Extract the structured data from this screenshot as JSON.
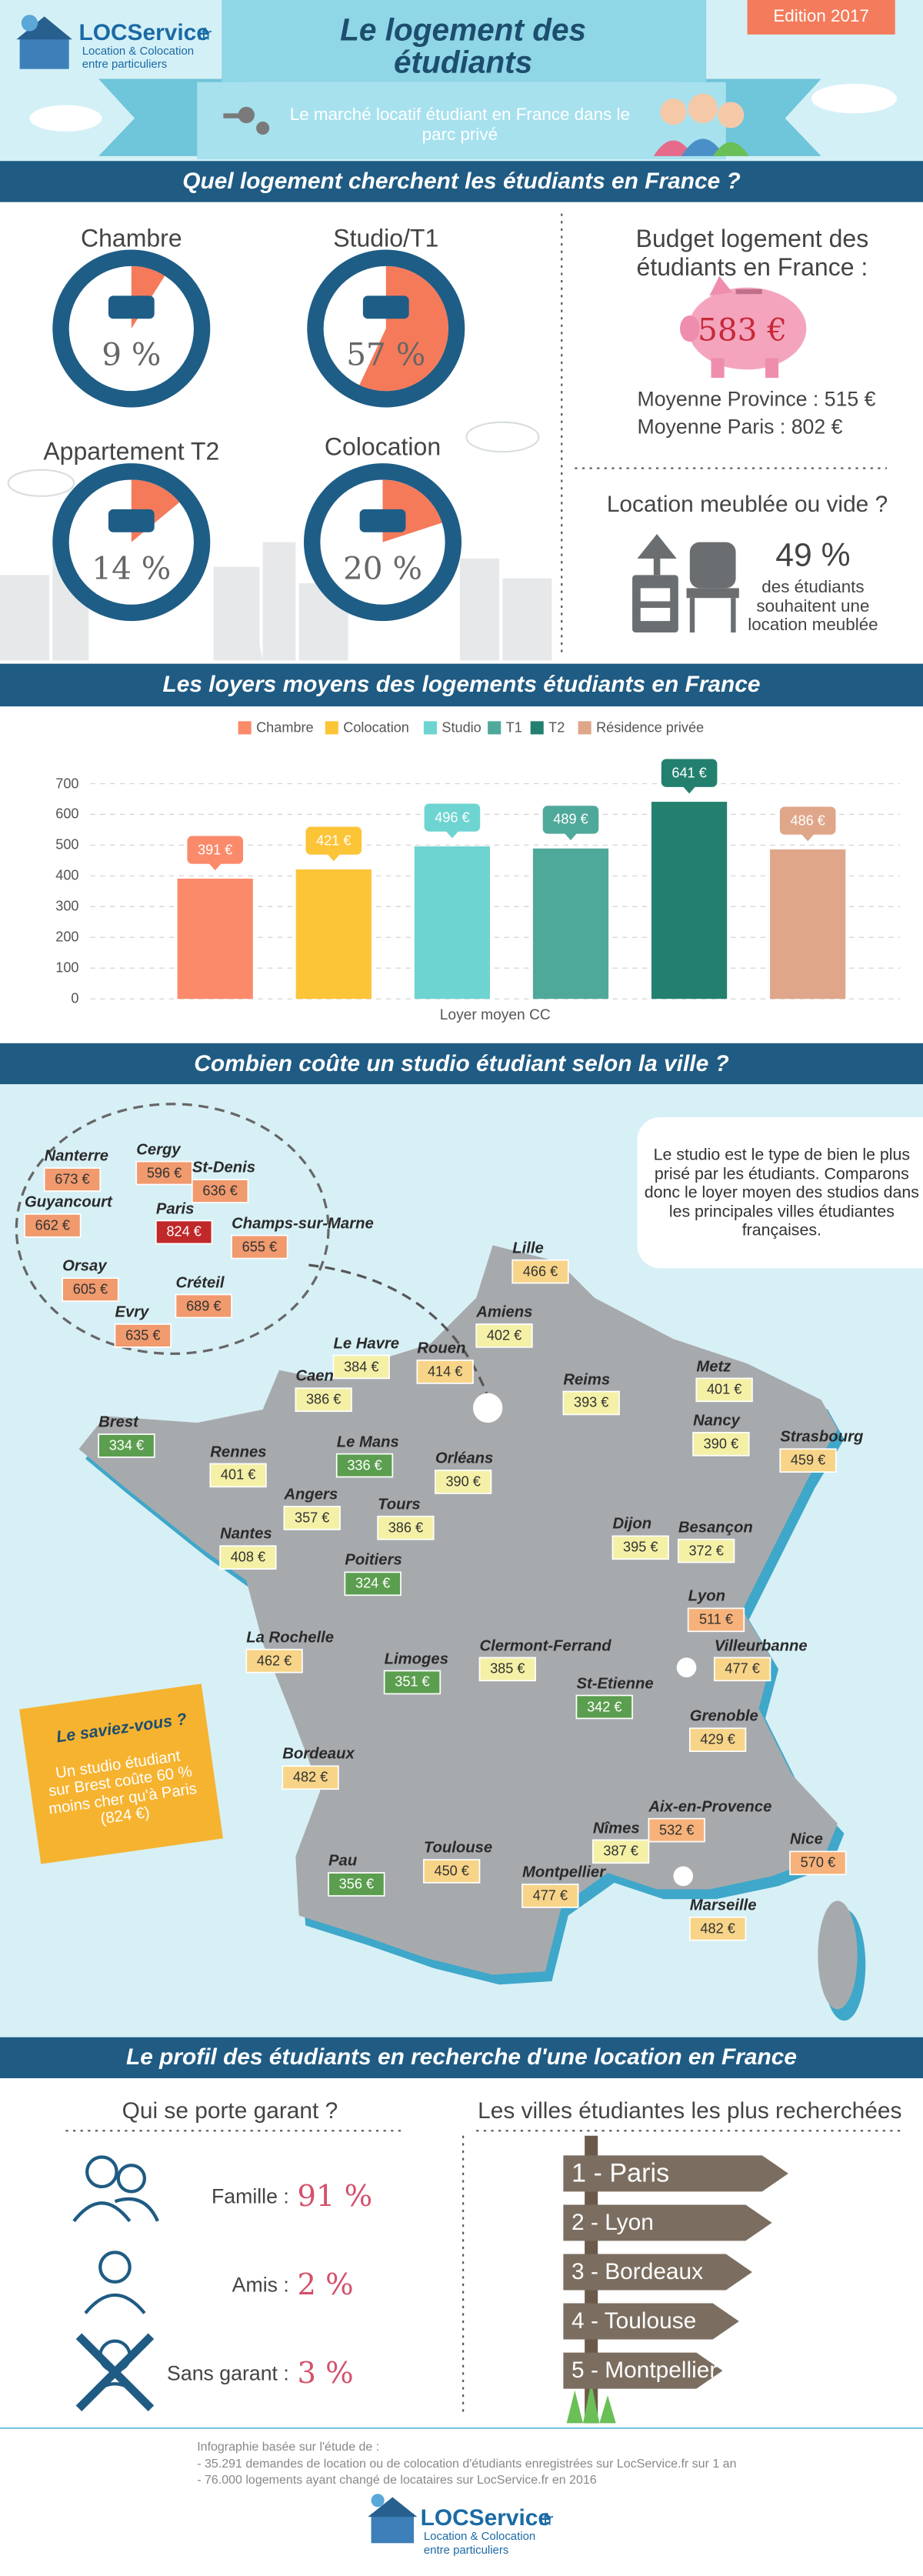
{
  "header": {
    "brand": "LOCService",
    "brand_suffix": ".fr",
    "tagline": "Location & Colocation entre particuliers",
    "title": "Le logement des étudiants",
    "edition": "Edition 2017",
    "subtitle": "Le marché locatif étudiant en France dans le parc privé"
  },
  "housing": {
    "title": "Quel logement cherchent les étudiants en France ?",
    "types": [
      {
        "name": "Chambre",
        "percent": 9,
        "label": "9 %"
      },
      {
        "name": "Studio/T1",
        "percent": 57,
        "label": "57 %"
      },
      {
        "name": "Appartement T2",
        "percent": 14,
        "label": "14 %"
      },
      {
        "name": "Colocation",
        "percent": 20,
        "label": "20 %"
      }
    ],
    "budget": {
      "title": "Budget logement des étudiants en France :",
      "amount": "583 €",
      "province": "Moyenne Province : 515 €",
      "paris": "Moyenne Paris : 802 €"
    },
    "furnished": {
      "title": "Location meublée ou vide ?",
      "percent": "49 %",
      "text": "des étudiants souhaitent une location meublée"
    }
  },
  "chart_data": {
    "type": "bar",
    "title": "Les loyers moyens des logements étudiants en France",
    "categories": [
      "Loyer moyen CC"
    ],
    "series": [
      {
        "name": "Chambre",
        "color": "#fb8a6b",
        "values": [
          391
        ],
        "value_labels": [
          "391 €"
        ]
      },
      {
        "name": "Colocation",
        "color": "#fcc437",
        "values": [
          421
        ],
        "value_labels": [
          "421 €"
        ]
      },
      {
        "name": "Studio",
        "color": "#6dd4d1",
        "values": [
          496
        ],
        "value_labels": [
          "496 €"
        ]
      },
      {
        "name": "T1",
        "color": "#4fa99a",
        "values": [
          489
        ],
        "value_labels": [
          "489 €"
        ]
      },
      {
        "name": "T2",
        "color": "#23806f",
        "values": [
          641
        ],
        "value_labels": [
          "641 €"
        ]
      },
      {
        "name": "Résidence privée",
        "color": "#dfa68a",
        "values": [
          486
        ],
        "value_labels": [
          "486 €"
        ]
      }
    ],
    "ylim": [
      0,
      700
    ],
    "yticks": [
      0,
      100,
      200,
      300,
      400,
      500,
      600,
      700
    ],
    "grid": true,
    "legend": "top"
  },
  "map": {
    "title": "Combien coûte un studio étudiant selon la ville ?",
    "intro": "Le studio est le type de bien le plus prisé par les étudiants. Comparons donc le loyer moyen des studios dans les principales villes étudiantes françaises.",
    "did_you_know": {
      "title": "Le saviez-vous ?",
      "text": "Un studio étudiant sur Brest coûte 60 % moins cher qu'à Paris (824 €)"
    },
    "cities": [
      {
        "name": "Lille",
        "price": "466 €",
        "color": "#f7d488"
      },
      {
        "name": "Amiens",
        "price": "402 €",
        "color": "#f4f0a6"
      },
      {
        "name": "Le Havre",
        "price": "384 €",
        "color": "#f4f0a6"
      },
      {
        "name": "Rouen",
        "price": "414 €",
        "color": "#f7d488"
      },
      {
        "name": "Caen",
        "price": "386 €",
        "color": "#f4f0a6"
      },
      {
        "name": "Reims",
        "price": "393 €",
        "color": "#f4f0a6"
      },
      {
        "name": "Metz",
        "price": "401 €",
        "color": "#f4f0a6"
      },
      {
        "name": "Nancy",
        "price": "390 €",
        "color": "#f4f0a6"
      },
      {
        "name": "Strasbourg",
        "price": "459 €",
        "color": "#f7d488"
      },
      {
        "name": "Brest",
        "price": "334 €",
        "color": "#5c9e4f"
      },
      {
        "name": "Rennes",
        "price": "401 €",
        "color": "#f4f0a6"
      },
      {
        "name": "Le Mans",
        "price": "336 €",
        "color": "#5c9e4f"
      },
      {
        "name": "Orléans",
        "price": "390 €",
        "color": "#f4f0a6"
      },
      {
        "name": "Angers",
        "price": "357 €",
        "color": "#f4f0a6"
      },
      {
        "name": "Tours",
        "price": "386 €",
        "color": "#f4f0a6"
      },
      {
        "name": "Nantes",
        "price": "408 €",
        "color": "#f4f0a6"
      },
      {
        "name": "Poitiers",
        "price": "324 €",
        "color": "#5c9e4f"
      },
      {
        "name": "Dijon",
        "price": "395 €",
        "color": "#f4f0a6"
      },
      {
        "name": "Besançon",
        "price": "372 €",
        "color": "#f4f0a6"
      },
      {
        "name": "Lyon",
        "price": "511 €",
        "color": "#f6b27a"
      },
      {
        "name": "Villeurbanne",
        "price": "477 €",
        "color": "#f7d488"
      },
      {
        "name": "La Rochelle",
        "price": "462 €",
        "color": "#f7d488"
      },
      {
        "name": "Limoges",
        "price": "351 €",
        "color": "#5c9e4f"
      },
      {
        "name": "Clermont-Ferrand",
        "price": "385 €",
        "color": "#f4f0a6"
      },
      {
        "name": "St-Etienne",
        "price": "342 €",
        "color": "#5c9e4f"
      },
      {
        "name": "Grenoble",
        "price": "429 €",
        "color": "#f7d488"
      },
      {
        "name": "Bordeaux",
        "price": "482 €",
        "color": "#f7d488"
      },
      {
        "name": "Aix-en-Provence",
        "price": "532 €",
        "color": "#f6b27a"
      },
      {
        "name": "Nice",
        "price": "570 €",
        "color": "#f6b27a"
      },
      {
        "name": "Nîmes",
        "price": "387 €",
        "color": "#f4f0a6"
      },
      {
        "name": "Toulouse",
        "price": "450 €",
        "color": "#f7d488"
      },
      {
        "name": "Montpellier",
        "price": "477 €",
        "color": "#f7d488"
      },
      {
        "name": "Pau",
        "price": "356 €",
        "color": "#5c9e4f"
      },
      {
        "name": "Marseille",
        "price": "482 €",
        "color": "#f7d488"
      }
    ],
    "paris_area": [
      {
        "name": "Nanterre",
        "price": "673 €",
        "color": "#f09a6e"
      },
      {
        "name": "Cergy",
        "price": "596 €",
        "color": "#f09a6e"
      },
      {
        "name": "St-Denis",
        "price": "636 €",
        "color": "#f09a6e"
      },
      {
        "name": "Guyancourt",
        "price": "662 €",
        "color": "#f09a6e"
      },
      {
        "name": "Paris",
        "price": "824 €",
        "color": "#c0282a"
      },
      {
        "name": "Champs-sur-Marne",
        "price": "655 €",
        "color": "#f09a6e"
      },
      {
        "name": "Orsay",
        "price": "605 €",
        "color": "#f09a6e"
      },
      {
        "name": "Créteil",
        "price": "689 €",
        "color": "#f09a6e"
      },
      {
        "name": "Evry",
        "price": "635 €",
        "color": "#f09a6e"
      }
    ]
  },
  "profile": {
    "title": "Le profil des étudiants en recherche d'une location en France",
    "guarantor": {
      "title": "Qui se porte garant ?",
      "rows": [
        {
          "label": "Famille :",
          "value": "91 %"
        },
        {
          "label": "Amis :",
          "value": "2 %"
        },
        {
          "label": "Sans garant :",
          "value": "3 %"
        }
      ]
    },
    "cities": {
      "title": "Les villes étudiantes les plus recherchées",
      "ranking": [
        "1 - Paris",
        "2 - Lyon",
        "3 - Bordeaux",
        "4 - Toulouse",
        "5 - Montpellier"
      ]
    }
  },
  "footer": {
    "intro": "Infographie basée sur l'étude de :",
    "lines": [
      "- 35.291 demandes de location ou de colocation d'étudiants enregistrées sur LocService.fr sur 1 an",
      "- 76.000 logements ayant changé de locataires sur LocService.fr en 2016"
    ],
    "brand": "LOCService",
    "brand_suffix": ".fr",
    "tagline": "Location & Colocation entre particuliers"
  }
}
